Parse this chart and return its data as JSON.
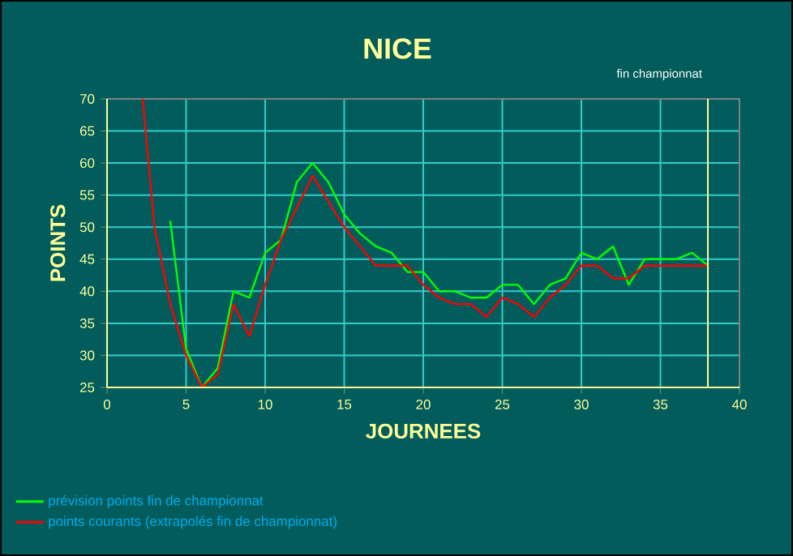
{
  "chart_data": {
    "type": "line",
    "title": "NICE",
    "xlabel": "JOURNEES",
    "ylabel": "POINTS",
    "xlim": [
      0,
      40
    ],
    "ylim": [
      25,
      70
    ],
    "xticks": [
      0,
      5,
      10,
      15,
      20,
      25,
      30,
      35,
      40
    ],
    "yticks": [
      25,
      30,
      35,
      40,
      45,
      50,
      55,
      60,
      65,
      70
    ],
    "grid": true,
    "legend": "bottom left",
    "series": [
      {
        "name": "prévision points fin de championnat",
        "color": "#00ff00",
        "x": [
          4,
          5,
          6,
          7,
          8,
          9,
          10,
          11,
          12,
          13,
          14,
          15,
          16,
          17,
          18,
          19,
          20,
          21,
          22,
          23,
          24,
          25,
          26,
          27,
          28,
          29,
          30,
          31,
          32,
          33,
          34,
          35,
          36,
          37,
          38
        ],
        "values": [
          51,
          31,
          25,
          28,
          40,
          39,
          46,
          48,
          57,
          60,
          57,
          52,
          49,
          47,
          46,
          43,
          43,
          40,
          40,
          39,
          39,
          41,
          41,
          38,
          41,
          42,
          46,
          45,
          47,
          41,
          45,
          45,
          45,
          46,
          44
        ]
      },
      {
        "name": "points courants (extrapolés fin de championnat)",
        "color": "#ff0000",
        "x": [
          2.25,
          3,
          4,
          5,
          6,
          7,
          8,
          9,
          10,
          11,
          12,
          13,
          14,
          15,
          16,
          17,
          18,
          19,
          20,
          21,
          22,
          23,
          24,
          25,
          26,
          27,
          28,
          29,
          30,
          31,
          32,
          33,
          34,
          35,
          36,
          37,
          38
        ],
        "values": [
          70,
          50,
          38,
          30,
          25,
          27,
          38,
          33,
          41,
          48,
          53,
          58,
          54,
          50,
          47,
          44,
          44,
          44,
          41,
          39,
          38,
          38,
          36,
          39,
          38,
          36,
          39,
          41,
          44,
          44,
          42,
          42,
          44,
          44,
          44,
          44,
          44
        ]
      }
    ],
    "ref_lines": [
      {
        "axis": "x",
        "value": 38,
        "label": "fin championnat",
        "color": "#ffff99"
      }
    ]
  }
}
